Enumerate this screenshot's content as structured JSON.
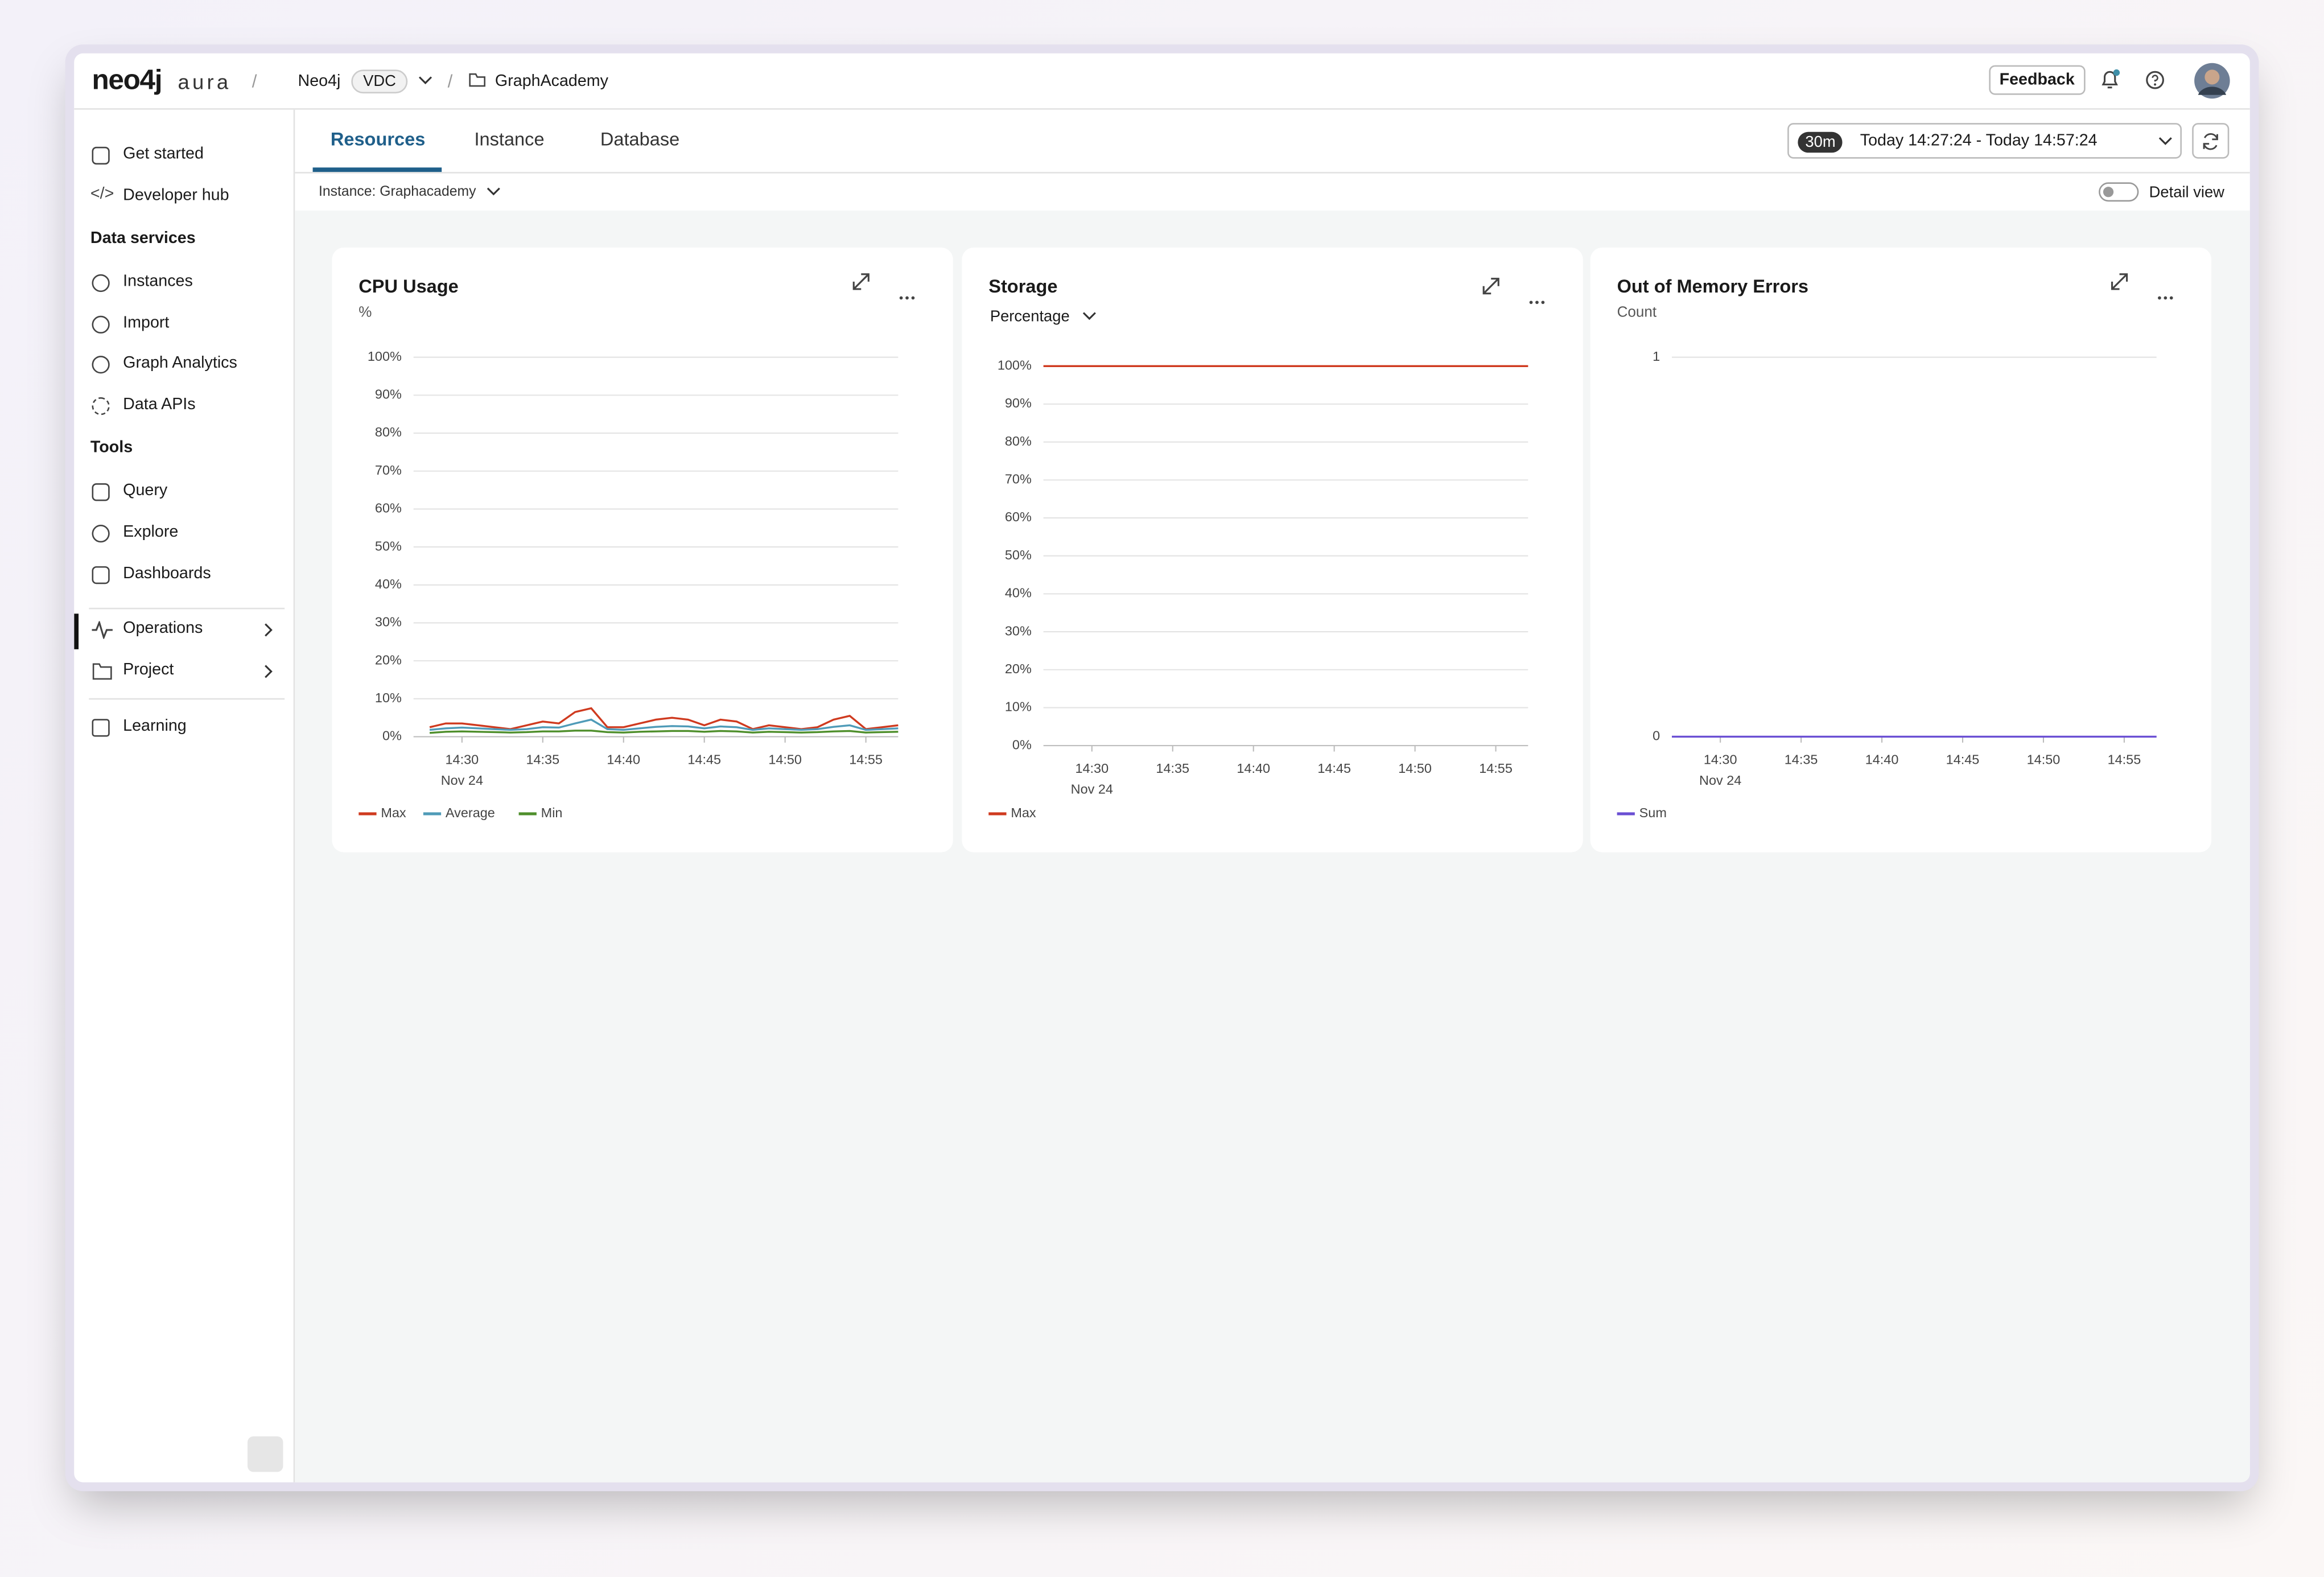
{
  "topbar": {
    "logo": "neo4j",
    "logo_suffix": "aura",
    "org": "Neo4j",
    "org_badge": "VDC",
    "project": "GraphAcademy",
    "feedback": "Feedback"
  },
  "sidebar": {
    "nav_top": [
      "Get started",
      "Developer hub"
    ],
    "data_services": {
      "heading": "Data services",
      "items": [
        "Instances",
        "Import",
        "Graph Analytics",
        "Data APIs"
      ]
    },
    "tools": {
      "heading": "Tools",
      "items": [
        "Query",
        "Explore",
        "Dashboards"
      ]
    },
    "nav_bottom": [
      "Operations",
      "Project"
    ],
    "learning": "Learning"
  },
  "tabs": [
    "Resources",
    "Instance",
    "Database"
  ],
  "active_tab": 0,
  "time_range": {
    "badge": "30m",
    "text": "Today 14:27:24 - Today 14:57:24"
  },
  "instance_selector": "Instance: Graphacademy",
  "detail_view": "Detail view",
  "chart_data": [
    {
      "type": "line",
      "title": "CPU Usage",
      "subtitle": "%",
      "grid": true,
      "x": [
        "14:28",
        "14:29",
        "14:30",
        "14:31",
        "14:32",
        "14:33",
        "14:34",
        "14:35",
        "14:36",
        "14:37",
        "14:38",
        "14:39",
        "14:40",
        "14:41",
        "14:42",
        "14:43",
        "14:44",
        "14:45",
        "14:46",
        "14:47",
        "14:48",
        "14:49",
        "14:50",
        "14:51",
        "14:52",
        "14:53",
        "14:54",
        "14:55",
        "14:56",
        "14:57"
      ],
      "series": [
        {
          "name": "Max",
          "color": "#cf3a1f",
          "values": [
            2.5,
            3.5,
            3.5,
            3,
            2.5,
            2,
            3,
            4,
            3.5,
            6.5,
            7.5,
            2.5,
            2.5,
            3.5,
            4.5,
            5,
            4.5,
            3,
            4.5,
            4,
            2,
            3,
            2.5,
            2,
            2.5,
            4.5,
            5.5,
            2,
            2.5,
            3
          ]
        },
        {
          "name": "Average",
          "color": "#4f9bb8",
          "values": [
            1.8,
            2.2,
            2.4,
            2.2,
            2,
            1.8,
            2,
            2.5,
            2.4,
            3.5,
            4.5,
            2,
            1.8,
            2.2,
            2.6,
            2.8,
            2.7,
            2.2,
            2.7,
            2.5,
            1.8,
            2.2,
            2,
            1.8,
            2,
            2.6,
            3,
            1.8,
            2,
            2.2
          ]
        },
        {
          "name": "Min",
          "color": "#4f8f2c",
          "values": [
            1,
            1.3,
            1.4,
            1.3,
            1.2,
            1.1,
            1.2,
            1.4,
            1.4,
            1.6,
            1.6,
            1.2,
            1.1,
            1.3,
            1.4,
            1.5,
            1.5,
            1.3,
            1.5,
            1.4,
            1.1,
            1.3,
            1.2,
            1.1,
            1.2,
            1.4,
            1.5,
            1.1,
            1.2,
            1.3
          ]
        }
      ],
      "xlim": [
        "14:27",
        "14:57"
      ],
      "xticks": [
        "14:30",
        "14:35",
        "14:40",
        "14:45",
        "14:50",
        "14:55"
      ],
      "x_date_label": "Nov 24",
      "ylim": [
        0,
        100
      ],
      "yticks": [
        {
          "value": 0,
          "label": "0%"
        },
        {
          "value": 10,
          "label": "10%"
        },
        {
          "value": 20,
          "label": "20%"
        },
        {
          "value": 30,
          "label": "30%"
        },
        {
          "value": 40,
          "label": "40%"
        },
        {
          "value": 50,
          "label": "50%"
        },
        {
          "value": 60,
          "label": "60%"
        },
        {
          "value": 70,
          "label": "70%"
        },
        {
          "value": 80,
          "label": "80%"
        },
        {
          "value": 90,
          "label": "90%"
        },
        {
          "value": 100,
          "label": "100%"
        }
      ]
    },
    {
      "type": "line",
      "title": "Storage",
      "selector": "Percentage",
      "grid": true,
      "x": [
        "14:27",
        "14:57"
      ],
      "series": [
        {
          "name": "Max",
          "color": "#cf3a1f",
          "values": [
            100,
            100
          ]
        }
      ],
      "xlim": [
        "14:27",
        "14:57"
      ],
      "xticks": [
        "14:30",
        "14:35",
        "14:40",
        "14:45",
        "14:50",
        "14:55"
      ],
      "x_date_label": "Nov 24",
      "ylim": [
        0,
        100
      ],
      "yticks": [
        {
          "value": 0,
          "label": "0%"
        },
        {
          "value": 10,
          "label": "10%"
        },
        {
          "value": 20,
          "label": "20%"
        },
        {
          "value": 30,
          "label": "30%"
        },
        {
          "value": 40,
          "label": "40%"
        },
        {
          "value": 50,
          "label": "50%"
        },
        {
          "value": 60,
          "label": "60%"
        },
        {
          "value": 70,
          "label": "70%"
        },
        {
          "value": 80,
          "label": "80%"
        },
        {
          "value": 90,
          "label": "90%"
        },
        {
          "value": 100,
          "label": "100%"
        }
      ]
    },
    {
      "type": "line",
      "title": "Out of Memory Errors",
      "subtitle": "Count",
      "grid": true,
      "x": [
        "14:27",
        "14:57"
      ],
      "series": [
        {
          "name": "Sum",
          "color": "#6a4fd3",
          "values": [
            0,
            0
          ]
        }
      ],
      "xlim": [
        "14:27",
        "14:57"
      ],
      "xticks": [
        "14:30",
        "14:35",
        "14:40",
        "14:45",
        "14:50",
        "14:55"
      ],
      "x_date_label": "Nov 24",
      "ylim": [
        0,
        1
      ],
      "yticks": [
        0,
        1
      ]
    }
  ]
}
